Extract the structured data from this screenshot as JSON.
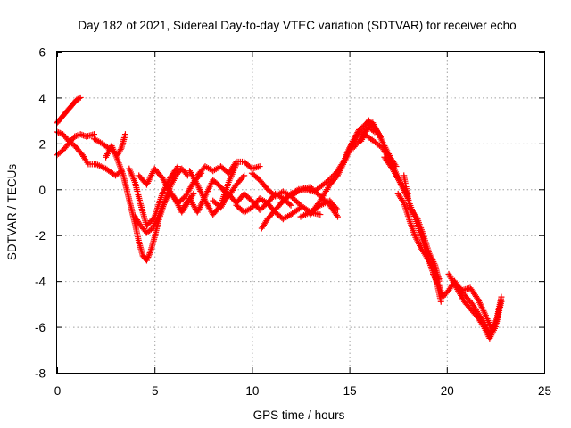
{
  "chart_data": {
    "type": "scatter",
    "title": "Day 182 of 2021, Sidereal Day-to-day VTEC variation (SDTVAR) for receiver echo",
    "xlabel": "GPS time / hours",
    "ylabel": "SDTVAR / TECUs",
    "xlim": [
      0,
      25
    ],
    "ylim": [
      -8,
      6
    ],
    "xticks": [
      0,
      5,
      10,
      15,
      20,
      25
    ],
    "yticks": [
      -8,
      -6,
      -4,
      -2,
      0,
      2,
      4,
      6
    ],
    "xtick_labels": [
      "0",
      "5",
      "10",
      "15",
      "20",
      "25"
    ],
    "ytick_labels": [
      "-8",
      "-6",
      "-4",
      "-2",
      "0",
      "2",
      "4",
      "6"
    ],
    "grid": true,
    "marker": "+",
    "series": [
      {
        "name": "SDTVAR",
        "color": "#ff0000",
        "segments": [
          {
            "x": [
              0.0,
              0.2,
              0.4,
              0.6,
              0.8,
              1.0,
              1.2
            ],
            "y": [
              2.9,
              3.1,
              3.3,
              3.5,
              3.7,
              3.9,
              4.0
            ]
          },
          {
            "x": [
              0.0,
              0.3,
              0.6,
              0.9,
              1.2,
              1.5,
              1.9
            ],
            "y": [
              1.5,
              1.7,
              2.0,
              2.3,
              2.4,
              2.3,
              2.4
            ]
          },
          {
            "x": [
              0.0,
              0.3,
              0.6,
              0.9,
              1.3,
              1.6,
              2.0,
              2.5,
              3.0,
              3.3
            ],
            "y": [
              2.5,
              2.4,
              2.1,
              1.9,
              1.5,
              1.1,
              1.1,
              0.9,
              0.6,
              0.8
            ]
          },
          {
            "x": [
              1.9,
              2.3,
              2.8,
              3.1,
              3.3,
              3.5
            ],
            "y": [
              2.2,
              2.0,
              1.7,
              1.5,
              1.8,
              2.4
            ]
          },
          {
            "x": [
              2.5,
              2.8,
              3.1,
              3.4,
              3.6,
              3.8,
              4.0,
              4.2,
              4.4,
              4.6,
              4.8,
              5.0,
              5.2,
              5.5,
              5.8,
              6.1,
              6.4,
              6.7,
              7.0
            ],
            "y": [
              1.4,
              1.9,
              1.3,
              0.6,
              -0.1,
              -0.8,
              -1.5,
              -2.3,
              -2.9,
              -3.1,
              -2.7,
              -2.1,
              -1.4,
              -0.6,
              -0.1,
              -0.5,
              -1.0,
              -0.6,
              -0.2
            ]
          },
          {
            "x": [
              4.0,
              4.3,
              4.6,
              4.9,
              5.2,
              5.5,
              5.8,
              6.1,
              6.4,
              6.7
            ],
            "y": [
              -1.2,
              -1.6,
              -1.9,
              -1.7,
              -1.2,
              -0.6,
              0.1,
              0.6,
              0.9,
              0.6
            ]
          },
          {
            "x": [
              3.7,
              4.0,
              4.3,
              4.6,
              5.0,
              5.4,
              5.8,
              6.2
            ],
            "y": [
              0.9,
              0.3,
              -0.7,
              -1.6,
              -1.2,
              -0.2,
              0.5,
              1.0
            ]
          },
          {
            "x": [
              4.2,
              4.6,
              5.0,
              5.4,
              5.8,
              6.2,
              6.6,
              7.0,
              7.4
            ],
            "y": [
              0.6,
              0.2,
              0.9,
              0.5,
              -0.1,
              -0.6,
              -0.3,
              0.3,
              0.7
            ]
          },
          {
            "x": [
              6.4,
              6.8,
              7.2,
              7.6,
              8.0,
              8.4,
              8.8,
              9.2,
              9.6
            ],
            "y": [
              -0.9,
              -0.4,
              -1.0,
              -0.3,
              0.4,
              0.1,
              -0.3,
              0.2,
              0.6
            ]
          },
          {
            "x": [
              6.8,
              7.2,
              7.6,
              8.0,
              8.4,
              8.8,
              9.2
            ],
            "y": [
              0.8,
              0.2,
              -0.5,
              -1.1,
              -0.7,
              0.3,
              1.1
            ]
          },
          {
            "x": [
              7.2,
              7.6,
              8.0,
              8.4,
              8.8,
              9.2,
              9.6,
              10.0,
              10.4
            ],
            "y": [
              0.6,
              1.0,
              0.8,
              1.0,
              0.7,
              1.2,
              1.2,
              0.9,
              1.0
            ]
          },
          {
            "x": [
              8.0,
              8.4,
              8.8,
              9.2,
              9.6,
              10.0,
              10.4,
              10.8,
              11.2,
              11.6,
              12.0
            ],
            "y": [
              -0.5,
              -0.8,
              -0.2,
              -0.6,
              -0.2,
              -0.5,
              -0.9,
              -0.6,
              -0.2,
              -0.4,
              -0.7
            ]
          },
          {
            "x": [
              9.2,
              9.6,
              10.0,
              10.4,
              10.8,
              11.2,
              11.6,
              12.0,
              12.5
            ],
            "y": [
              -0.7,
              -1.0,
              -0.8,
              -0.4,
              -0.6,
              -1.0,
              -1.3,
              -1.1,
              -0.8
            ]
          },
          {
            "x": [
              10.0,
              10.4,
              10.8,
              11.2,
              11.6,
              12.0,
              12.5,
              13.0,
              13.5
            ],
            "y": [
              0.7,
              0.4,
              0.0,
              -0.3,
              -0.1,
              -0.3,
              -0.7,
              -1.0,
              -1.1
            ]
          },
          {
            "x": [
              10.5,
              10.8,
              11.2,
              11.6,
              12.0,
              12.4
            ],
            "y": [
              -1.7,
              -1.3,
              -0.9,
              -0.5,
              -0.2,
              0.0
            ]
          },
          {
            "x": [
              12.0,
              12.5,
              13.0,
              13.5,
              14.0,
              14.4
            ],
            "y": [
              -0.3,
              0.0,
              0.1,
              -0.3,
              -0.7,
              -1.2
            ]
          },
          {
            "x": [
              12.5,
              13.0,
              13.5,
              14.0,
              14.4
            ],
            "y": [
              -1.2,
              -1.0,
              -0.7,
              -0.5,
              -0.9
            ]
          },
          {
            "x": [
              11.5,
              12.0,
              12.6,
              13.2,
              13.8,
              14.3,
              14.7,
              15.0,
              15.3,
              15.5,
              15.8,
              16.0,
              16.3,
              16.6
            ],
            "y": [
              -0.6,
              -0.2,
              0.0,
              -0.1,
              0.3,
              0.7,
              1.2,
              1.8,
              2.3,
              2.6,
              2.8,
              3.0,
              2.7,
              2.3
            ]
          },
          {
            "x": [
              13.0,
              13.5,
              14.0,
              14.4,
              14.8,
              15.1,
              15.4,
              15.7,
              16.0,
              16.3
            ],
            "y": [
              -1.1,
              -0.5,
              0.2,
              0.6,
              1.3,
              1.9,
              2.3,
              2.5,
              2.7,
              2.5
            ]
          },
          {
            "x": [
              15.2,
              15.5,
              15.8,
              16.1,
              16.4,
              16.7,
              17.0,
              17.3,
              17.6,
              18.0
            ],
            "y": [
              1.8,
              2.1,
              2.4,
              2.2,
              2.0,
              1.8,
              1.4,
              0.9,
              0.3,
              -0.2
            ]
          },
          {
            "x": [
              15.6,
              15.9,
              16.2,
              16.5,
              16.8,
              17.1,
              17.4
            ],
            "y": [
              2.1,
              2.6,
              2.9,
              2.4,
              1.9,
              1.4,
              1.0
            ]
          },
          {
            "x": [
              16.8,
              17.2,
              17.6,
              18.0,
              18.3,
              18.6,
              18.9,
              19.2,
              19.5,
              19.7
            ],
            "y": [
              1.4,
              0.9,
              0.3,
              -0.4,
              -1.1,
              -1.8,
              -2.6,
              -3.4,
              -4.1,
              -4.9
            ]
          },
          {
            "x": [
              17.5,
              17.8,
              18.1,
              18.4,
              18.7,
              19.0,
              19.3,
              19.6
            ],
            "y": [
              -0.2,
              -0.6,
              -1.4,
              -2.1,
              -2.6,
              -3.0,
              -3.4,
              -3.9
            ]
          },
          {
            "x": [
              17.8,
              18.1,
              18.5,
              18.8,
              19.1,
              19.4,
              19.6
            ],
            "y": [
              0.6,
              -0.8,
              -1.3,
              -2.0,
              -2.8,
              -3.3,
              -4.0
            ]
          },
          {
            "x": [
              19.3,
              19.6,
              19.8,
              20.1,
              20.4,
              20.7,
              21.0,
              21.3,
              21.6,
              21.9,
              22.2,
              22.5,
              22.8
            ],
            "y": [
              -3.7,
              -4.2,
              -4.7,
              -4.4,
              -4.0,
              -4.4,
              -4.7,
              -5.0,
              -5.4,
              -5.8,
              -6.3,
              -5.9,
              -4.7
            ]
          },
          {
            "x": [
              20.1,
              20.5,
              20.9,
              21.3,
              21.6,
              21.9,
              22.2,
              22.5,
              22.8
            ],
            "y": [
              -3.7,
              -4.3,
              -4.9,
              -5.3,
              -5.6,
              -6.0,
              -6.5,
              -6.0,
              -4.9
            ]
          },
          {
            "x": [
              20.4,
              20.8,
              21.2,
              21.6,
              22.0,
              22.3,
              22.6
            ],
            "y": [
              -4.1,
              -4.4,
              -4.3,
              -4.8,
              -5.5,
              -6.1,
              -5.6
            ]
          }
        ]
      }
    ]
  }
}
